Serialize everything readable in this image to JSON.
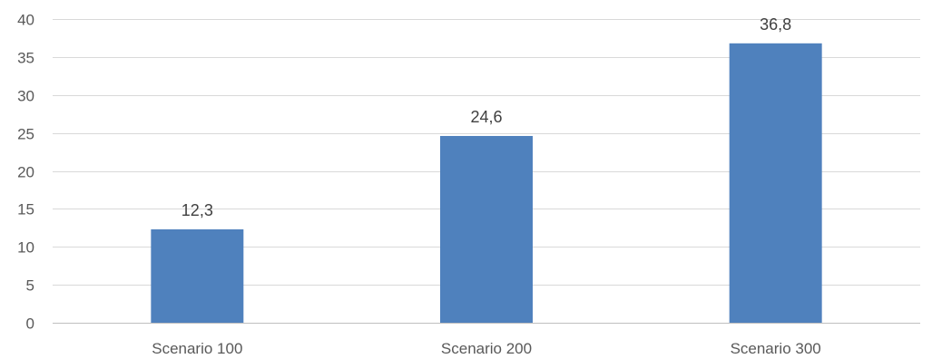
{
  "chart_data": {
    "type": "bar",
    "title": "",
    "xlabel": "",
    "ylabel": "",
    "categories": [
      "Scenario 100",
      "Scenario 200",
      "Scenario 300"
    ],
    "values": [
      12.3,
      24.6,
      36.8
    ],
    "data_labels": [
      "12,3",
      "24,6",
      "36,8"
    ],
    "ylim": [
      0,
      40
    ],
    "yticks": [
      0,
      5,
      10,
      15,
      20,
      25,
      30,
      35,
      40
    ],
    "grid": true,
    "legend": "none",
    "bar_color": "#4F81BD",
    "grid_color": "#D9D9D9",
    "axis_color": "#BFBFBF"
  }
}
